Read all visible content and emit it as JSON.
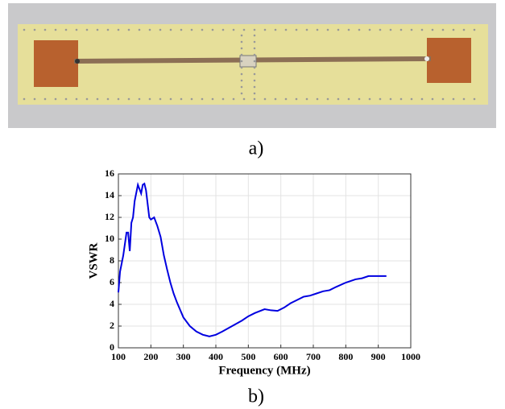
{
  "captions": [
    "a)",
    "b)"
  ],
  "chart_data": {
    "type": "line",
    "x_label": "Frequency (MHz)",
    "y_label": "VSWR",
    "x": [
      100,
      105,
      115,
      125,
      130,
      135,
      140,
      145,
      150,
      160,
      170,
      175,
      180,
      185,
      195,
      200,
      210,
      220,
      230,
      240,
      250,
      260,
      270,
      280,
      290,
      300,
      320,
      340,
      360,
      380,
      400,
      420,
      450,
      480,
      500,
      520,
      550,
      570,
      590,
      610,
      630,
      650,
      670,
      690,
      710,
      730,
      750,
      770,
      800,
      830,
      850,
      870,
      890,
      910,
      925
    ],
    "series": [
      {
        "color": "#0000e0",
        "values": [
          5.1,
          7,
          8.5,
          10.6,
          10.6,
          8.9,
          11.5,
          12,
          13.5,
          15,
          14.2,
          15,
          15.1,
          14.5,
          12,
          11.8,
          12,
          11.2,
          10.2,
          8.5,
          7.2,
          6,
          5,
          4.2,
          3.5,
          2.8,
          2,
          1.5,
          1.2,
          1.05,
          1.2,
          1.5,
          2,
          2.5,
          2.9,
          3.2,
          3.55,
          3.45,
          3.4,
          3.7,
          4.1,
          4.4,
          4.7,
          4.8,
          5,
          5.2,
          5.3,
          5.6,
          6,
          6.3,
          6.4,
          6.6,
          6.6,
          6.6,
          6.6
        ]
      }
    ],
    "xlim": [
      100,
      1000
    ],
    "xticks": [
      100,
      200,
      300,
      400,
      500,
      600,
      700,
      800,
      900,
      1000
    ],
    "ylim": [
      0,
      16
    ],
    "yticks": [
      0,
      2,
      4,
      6,
      8,
      10,
      12,
      14,
      16
    ],
    "grid": true
  }
}
